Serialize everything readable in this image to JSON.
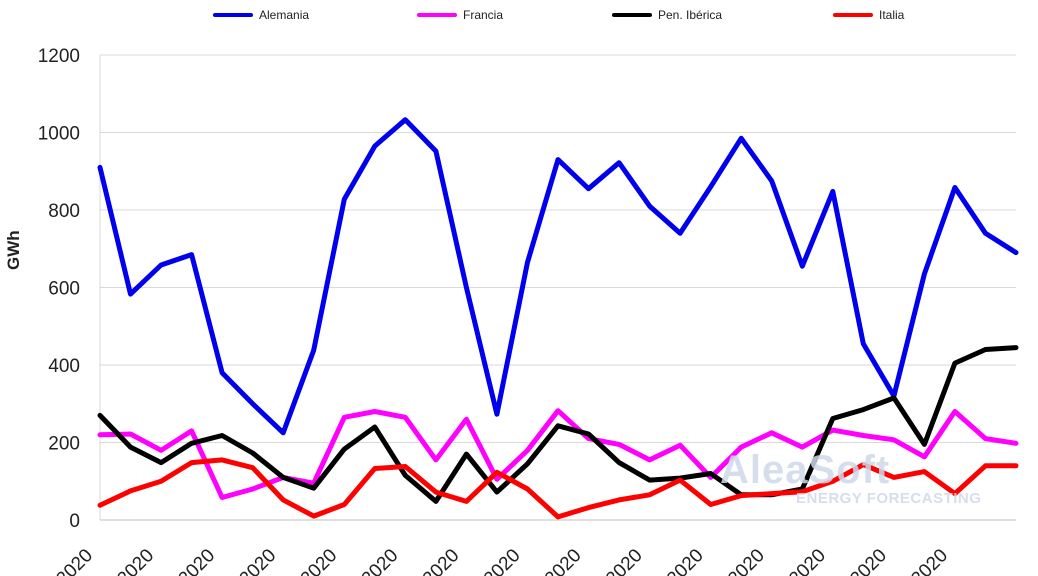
{
  "chart_data": {
    "type": "line",
    "ylabel": "GWh",
    "ylim": [
      0,
      1200
    ],
    "yticks": [
      "0",
      "200",
      "400",
      "600",
      "800",
      "1000",
      "1200"
    ],
    "grid": "horizontal",
    "legend_position": "top",
    "xtick_labels": [
      "/2020",
      "/2020",
      "/2020",
      "/2020",
      "/2020",
      "/2020",
      "/2020",
      "/2020",
      "/2020",
      "/2020",
      "/2020",
      "/2020",
      "/2020",
      "/2020",
      "/2020"
    ],
    "series": [
      {
        "name": "Alemania",
        "color": "#0000ee",
        "values": [
          910,
          583,
          658,
          685,
          380,
          300,
          225,
          438,
          828,
          965,
          1033,
          952,
          600,
          273,
          665,
          930,
          855,
          922,
          810,
          740,
          860,
          985,
          875,
          655,
          848,
          455,
          320,
          635,
          858,
          740,
          690
        ]
      },
      {
        "name": "Francia",
        "color": "#ff00ff",
        "values": [
          220,
          222,
          180,
          230,
          58,
          80,
          110,
          95,
          265,
          280,
          265,
          155,
          260,
          105,
          180,
          282,
          210,
          195,
          155,
          193,
          110,
          188,
          225,
          188,
          232,
          218,
          207,
          163,
          280,
          210,
          198
        ]
      },
      {
        "name": "Pen. Ibérica",
        "color": "#000000",
        "values": [
          270,
          188,
          148,
          198,
          218,
          173,
          110,
          82,
          183,
          240,
          115,
          48,
          170,
          72,
          145,
          243,
          222,
          148,
          103,
          108,
          120,
          65,
          65,
          80,
          262,
          285,
          315,
          195,
          405,
          440,
          445
        ]
      },
      {
        "name": "Italia",
        "color": "#ff0000",
        "values": [
          38,
          75,
          100,
          148,
          155,
          135,
          52,
          10,
          40,
          133,
          138,
          72,
          48,
          123,
          80,
          8,
          32,
          52,
          65,
          103,
          40,
          63,
          68,
          73,
          100,
          143,
          110,
          125,
          68,
          140,
          140
        ]
      }
    ]
  },
  "watermark": {
    "title": "AleaSoft",
    "subtitle": "ENERGY FORECASTING"
  }
}
